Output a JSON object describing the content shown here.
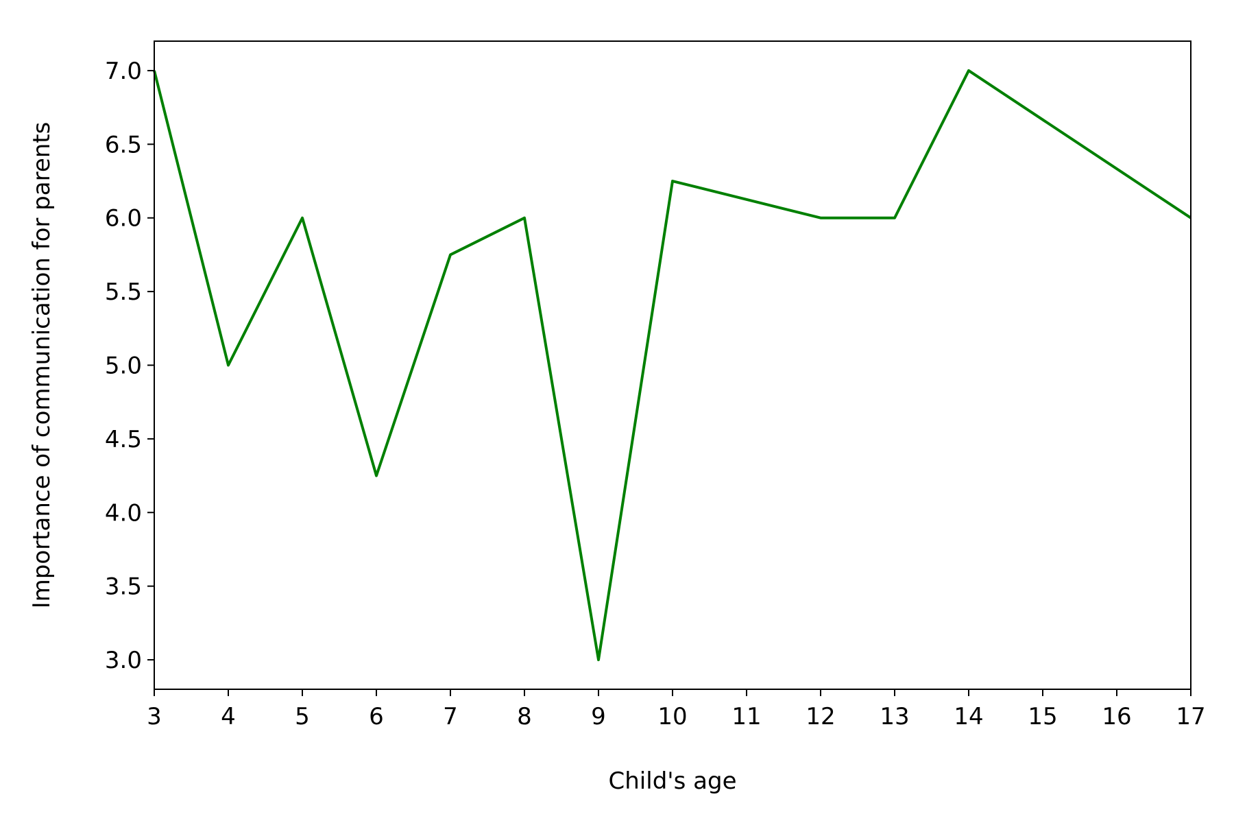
{
  "chart_data": {
    "type": "line",
    "title": "",
    "xlabel": "Child's age",
    "ylabel": "Importance of communication for parents",
    "xlim": [
      3,
      17
    ],
    "ylim": [
      2.8,
      7.2
    ],
    "xticks": [
      3,
      4,
      5,
      6,
      7,
      8,
      9,
      10,
      11,
      12,
      13,
      14,
      15,
      16,
      17
    ],
    "xtick_labels": [
      "3",
      "4",
      "5",
      "6",
      "7",
      "8",
      "9",
      "10",
      "11",
      "12",
      "13",
      "14",
      "15",
      "16",
      "17"
    ],
    "yticks": [
      3.0,
      3.5,
      4.0,
      4.5,
      5.0,
      5.5,
      6.0,
      6.5,
      7.0
    ],
    "ytick_labels": [
      "3.0",
      "3.5",
      "4.0",
      "4.5",
      "5.0",
      "5.5",
      "6.0",
      "6.5",
      "7.0"
    ],
    "grid": false,
    "legend": "none",
    "series": [
      {
        "color": "#008000",
        "x": [
          3,
          4,
          5,
          6,
          7,
          8,
          9,
          10,
          12,
          13,
          14,
          17
        ],
        "y": [
          7.0,
          5.0,
          6.0,
          4.25,
          5.75,
          6.0,
          3.0,
          6.25,
          6.0,
          6.0,
          7.0,
          6.0
        ]
      }
    ]
  }
}
